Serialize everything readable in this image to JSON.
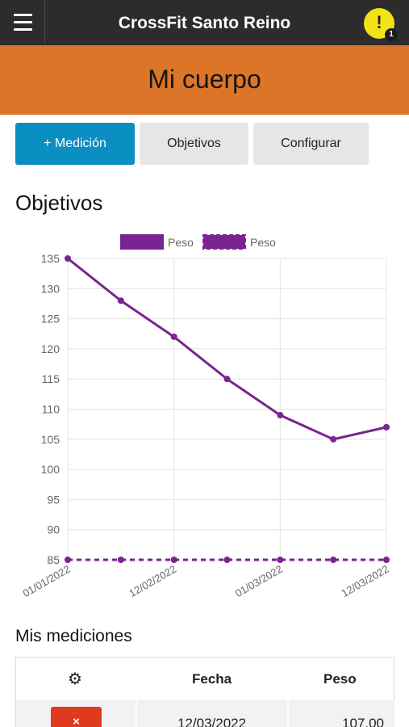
{
  "app": {
    "title": "CrossFit Santo Reino",
    "alert_icon": "!",
    "alert_count": "1"
  },
  "page": {
    "title": "Mi cuerpo"
  },
  "toolbar": {
    "add_label": "+ Medición",
    "goals_label": "Objetivos",
    "config_label": "Configurar"
  },
  "section": {
    "title": "Objetivos"
  },
  "chart_data": {
    "type": "line",
    "title": "",
    "x": [
      "01/01/2022",
      "",
      "12/02/2022",
      "",
      "01/03/2022",
      "",
      "12/03/2022"
    ],
    "xticks": [
      "01/01/2022",
      "12/02/2022",
      "01/03/2022",
      "12/03/2022"
    ],
    "ylim": [
      85,
      135
    ],
    "yticks": [
      135,
      130,
      125,
      120,
      115,
      110,
      105,
      100,
      95,
      90,
      85
    ],
    "grid": true,
    "legend_position": "top",
    "series": [
      {
        "name": "Peso",
        "style": "solid",
        "color": "#7b2390",
        "values": [
          135,
          128,
          122,
          115,
          109,
          105,
          107
        ]
      },
      {
        "name": "Peso",
        "style": "dashed",
        "color": "#7b2390",
        "values": [
          85,
          85,
          85,
          85,
          85,
          85,
          85
        ]
      }
    ]
  },
  "measurements": {
    "title": "Mis mediciones",
    "columns": {
      "actions_icon": "gear-icon",
      "date": "Fecha",
      "weight": "Peso"
    },
    "rows": [
      {
        "delete_label": "×",
        "date": "12/03/2022",
        "weight": "107,00"
      }
    ]
  },
  "colors": {
    "topbar": "#2c2c2c",
    "header": "#dc7528",
    "primary": "#0b8ec2",
    "danger": "#e03a1e",
    "series": "#7b2390"
  }
}
